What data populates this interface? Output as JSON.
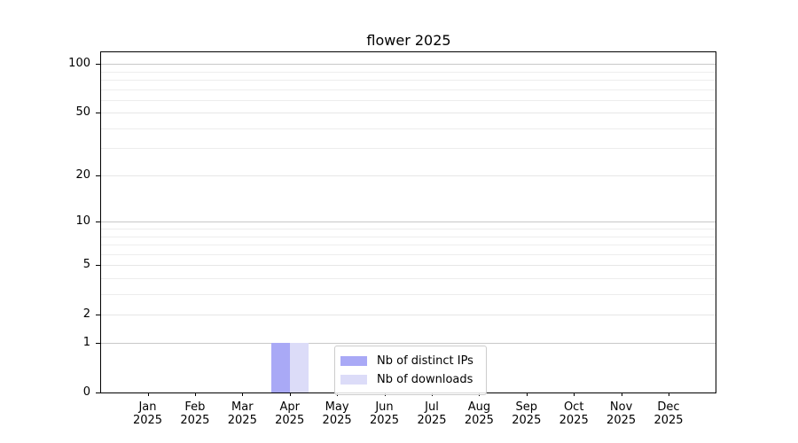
{
  "chart_data": {
    "type": "bar",
    "title": "flower 2025",
    "year_label": "2025",
    "categories": [
      "Jan",
      "Feb",
      "Mar",
      "Apr",
      "May",
      "Jun",
      "Jul",
      "Aug",
      "Sep",
      "Oct",
      "Nov",
      "Dec"
    ],
    "series": [
      {
        "name": "Nb of distinct IPs",
        "color": "#a9a9f6",
        "values": [
          0,
          0,
          0,
          1,
          0,
          0,
          0,
          0,
          0,
          0,
          0,
          0
        ]
      },
      {
        "name": "Nb of downloads",
        "color": "#dcdcf8",
        "values": [
          0,
          0,
          0,
          1,
          0,
          0,
          0,
          0,
          0,
          0,
          0,
          0
        ]
      }
    ],
    "xlabel": "",
    "ylabel": "",
    "yscale": "log1p",
    "ylim": [
      0,
      118
    ],
    "yticks": [
      0,
      1,
      2,
      5,
      10,
      20,
      50,
      100
    ],
    "yticks_minor": [
      3,
      4,
      6,
      7,
      8,
      9,
      30,
      40,
      60,
      70,
      80,
      90
    ],
    "grid": "horizontal",
    "legend_position": "lower center"
  },
  "colors": {
    "bar_distinct_ips": "#a9a9f6",
    "bar_downloads": "#dcdcf8",
    "grid_major_pow10": "#c8c8c8",
    "grid_major": "#e6e6e6",
    "grid_minor": "#ededed",
    "spine": "#000000",
    "text": "#000000",
    "legend_border": "#cccccc"
  }
}
